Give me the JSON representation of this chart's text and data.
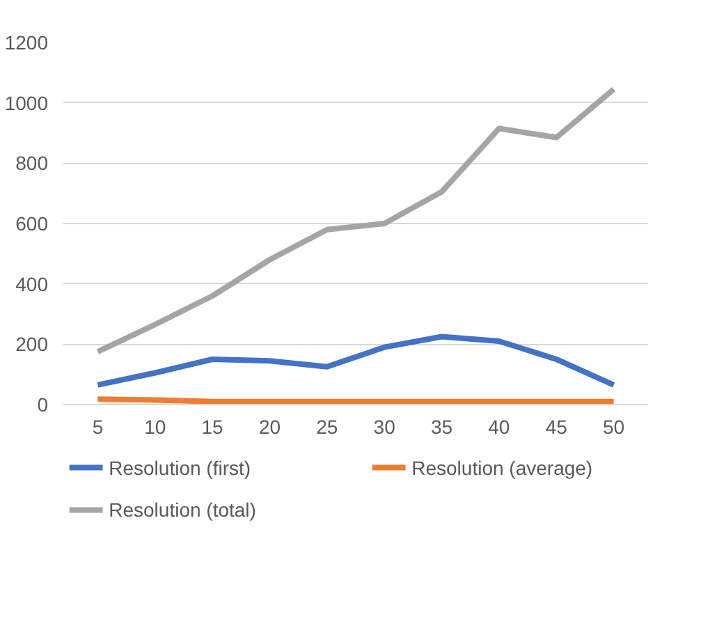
{
  "chart_data": {
    "type": "line",
    "categories": [
      "5",
      "10",
      "15",
      "20",
      "25",
      "30",
      "35",
      "40",
      "45",
      "50"
    ],
    "series": [
      {
        "name": "Resolution (first)",
        "color": "#4472c4",
        "values": [
          65,
          105,
          150,
          145,
          125,
          190,
          225,
          210,
          150,
          65
        ]
      },
      {
        "name": "Resolution (average)",
        "color": "#ed7d31",
        "values": [
          18,
          15,
          10,
          10,
          10,
          10,
          10,
          10,
          10,
          10
        ]
      },
      {
        "name": "Resolution (total)",
        "color": "#a5a5a5",
        "values": [
          175,
          265,
          360,
          480,
          580,
          600,
          705,
          915,
          885,
          1045
        ]
      }
    ],
    "ylim": [
      0,
      1200
    ],
    "yticks": [
      0,
      200,
      400,
      600,
      800,
      1000,
      1200
    ],
    "grid": "y",
    "legend": "bottom",
    "marker": "none",
    "line_style": "solid"
  }
}
